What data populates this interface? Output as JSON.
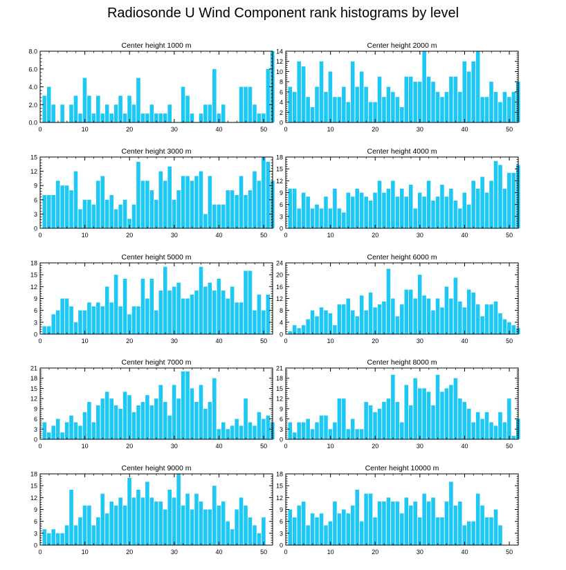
{
  "title": "Radiosonde U Wind Component rank histograms by level",
  "style": {
    "bar_color": "#1ec8f5",
    "axis_color": "#000000",
    "background": "#ffffff"
  },
  "chart_data": [
    {
      "type": "bar",
      "title": "Center height 1000 m",
      "xlim": [
        0,
        52
      ],
      "ylim": [
        0,
        8
      ],
      "yticks": [
        0,
        2,
        4,
        6,
        8
      ],
      "ytick_labels": [
        "0.0",
        "2.0",
        "4.0",
        "6.0",
        "8.0"
      ],
      "xticks": [
        0,
        10,
        20,
        30,
        40,
        50
      ],
      "values": [
        3,
        4,
        2,
        0,
        2,
        0,
        2,
        3,
        1,
        5,
        3,
        1,
        3,
        1,
        2,
        1,
        2,
        3,
        1,
        3,
        2,
        5,
        1,
        1,
        2,
        1,
        1,
        1,
        2,
        0,
        0,
        4,
        3,
        1,
        0,
        1,
        2,
        2,
        6,
        1,
        2,
        0,
        0,
        0,
        4,
        4,
        4,
        2,
        1,
        1,
        6,
        8
      ]
    },
    {
      "type": "bar",
      "title": "Center height 2000 m",
      "xlim": [
        0,
        52
      ],
      "ylim": [
        0,
        14
      ],
      "yticks": [
        0,
        2,
        4,
        6,
        8,
        10,
        12,
        14
      ],
      "xticks": [
        0,
        10,
        20,
        30,
        40,
        50
      ],
      "values": [
        7,
        6,
        12,
        11,
        5,
        3,
        7,
        12,
        6,
        10,
        5,
        5,
        7,
        4,
        12,
        7,
        10,
        7,
        4,
        4,
        9,
        5,
        7,
        6,
        5,
        3,
        9,
        9,
        8,
        8,
        14,
        9,
        8,
        6,
        5,
        6,
        9,
        9,
        6,
        12,
        10,
        12,
        14,
        5,
        5,
        8,
        6,
        4,
        6,
        5,
        6,
        8
      ]
    },
    {
      "type": "bar",
      "title": "Center height 3000 m",
      "xlim": [
        0,
        52
      ],
      "ylim": [
        0,
        15
      ],
      "yticks": [
        0,
        3,
        6,
        9,
        12,
        15
      ],
      "xticks": [
        0,
        10,
        20,
        30,
        40,
        50
      ],
      "values": [
        7,
        7,
        7,
        10,
        9,
        9,
        8,
        12,
        4,
        6,
        6,
        5,
        10,
        11,
        6,
        7,
        4,
        5,
        6,
        2,
        5,
        14,
        10,
        10,
        8,
        6,
        12,
        10,
        13,
        6,
        8,
        11,
        11,
        10,
        11,
        12,
        3,
        11,
        5,
        5,
        5,
        8,
        8,
        7,
        11,
        7,
        8,
        12,
        10,
        15,
        14,
        10
      ]
    },
    {
      "type": "bar",
      "title": "Center height 4000 m",
      "xlim": [
        0,
        52
      ],
      "ylim": [
        0,
        18
      ],
      "yticks": [
        0,
        3,
        6,
        9,
        12,
        15,
        18
      ],
      "xticks": [
        0,
        10,
        20,
        30,
        40,
        50
      ],
      "values": [
        10,
        10,
        5,
        9,
        8,
        5,
        6,
        5,
        8,
        5,
        10,
        5,
        4,
        9,
        8,
        10,
        9,
        8,
        7,
        9,
        12,
        9,
        10,
        12,
        8,
        10,
        8,
        11,
        5,
        9,
        8,
        12,
        7,
        8,
        11,
        8,
        10,
        7,
        5,
        9,
        6,
        12,
        10,
        13,
        9,
        12,
        17,
        16,
        10,
        14,
        14,
        16
      ]
    },
    {
      "type": "bar",
      "title": "Center height 5000 m",
      "xlim": [
        0,
        52
      ],
      "ylim": [
        0,
        18
      ],
      "yticks": [
        0,
        3,
        6,
        9,
        12,
        15,
        18
      ],
      "xticks": [
        0,
        10,
        20,
        30,
        40,
        50
      ],
      "values": [
        2,
        2,
        5,
        6,
        9,
        9,
        7,
        3,
        6,
        6,
        8,
        7,
        8,
        7,
        12,
        8,
        15,
        7,
        14,
        5,
        7,
        7,
        14,
        9,
        14,
        6,
        11,
        17,
        11,
        12,
        13,
        9,
        9,
        10,
        11,
        17,
        12,
        13,
        11,
        14,
        11,
        9,
        12,
        8,
        8,
        16,
        16,
        6,
        10,
        6,
        10,
        0
      ]
    },
    {
      "type": "bar",
      "title": "Center height 6000 m",
      "xlim": [
        0,
        52
      ],
      "ylim": [
        0,
        24
      ],
      "yticks": [
        0,
        4,
        8,
        12,
        16,
        20,
        24
      ],
      "xticks": [
        0,
        10,
        20,
        30,
        40,
        50
      ],
      "values": [
        1,
        3,
        2,
        3,
        5,
        8,
        6,
        9,
        8,
        7,
        3,
        10,
        10,
        12,
        8,
        6,
        13,
        8,
        14,
        9,
        10,
        11,
        22,
        12,
        6,
        10,
        15,
        15,
        12,
        20,
        13,
        12,
        8,
        12,
        9,
        16,
        12,
        19,
        11,
        9,
        15,
        14,
        10,
        6,
        10,
        10,
        11,
        7,
        5,
        4,
        3,
        2
      ]
    },
    {
      "type": "bar",
      "title": "Center height 7000 m",
      "xlim": [
        0,
        52
      ],
      "ylim": [
        0,
        21
      ],
      "yticks": [
        0,
        3,
        6,
        9,
        12,
        15,
        18,
        21
      ],
      "xticks": [
        0,
        10,
        20,
        30,
        40,
        50
      ],
      "values": [
        5,
        2,
        4,
        6,
        2,
        5,
        7,
        5,
        4,
        8,
        11,
        5,
        10,
        12,
        14,
        12,
        10,
        9,
        14,
        13,
        8,
        10,
        11,
        13,
        10,
        12,
        16,
        11,
        7,
        16,
        12,
        20,
        20,
        15,
        11,
        16,
        9,
        11,
        18,
        3,
        5,
        3,
        4,
        6,
        4,
        12,
        5,
        4,
        8,
        6,
        7,
        5
      ]
    },
    {
      "type": "bar",
      "title": "Center height 8000 m",
      "xlim": [
        0,
        52
      ],
      "ylim": [
        0,
        21
      ],
      "yticks": [
        0,
        3,
        6,
        9,
        12,
        15,
        18,
        21
      ],
      "xticks": [
        0,
        10,
        20,
        30,
        40,
        50
      ],
      "values": [
        5,
        2,
        5,
        5,
        6,
        3,
        5,
        7,
        7,
        3,
        5,
        12,
        12,
        3,
        6,
        3,
        3,
        11,
        10,
        8,
        9,
        11,
        12,
        19,
        11,
        5,
        16,
        10,
        18,
        15,
        15,
        14,
        10,
        19,
        14,
        15,
        16,
        18,
        12,
        11,
        9,
        5,
        8,
        6,
        8,
        5,
        4,
        8,
        5,
        12,
        1,
        6
      ]
    },
    {
      "type": "bar",
      "title": "Center height 9000 m",
      "xlim": [
        0,
        52
      ],
      "ylim": [
        0,
        18
      ],
      "yticks": [
        0,
        3,
        6,
        9,
        12,
        15,
        18
      ],
      "xticks": [
        0,
        10,
        20,
        30,
        40,
        50
      ],
      "values": [
        4,
        3,
        4,
        3,
        3,
        5,
        14,
        5,
        7,
        10,
        10,
        5,
        7,
        13,
        8,
        11,
        10,
        12,
        10,
        17,
        12,
        14,
        12,
        16,
        12,
        11,
        11,
        9,
        14,
        12,
        18,
        10,
        13,
        9,
        13,
        11,
        9,
        9,
        15,
        10,
        11,
        6,
        4,
        9,
        12,
        10,
        7,
        5,
        3,
        7,
        0,
        0
      ]
    },
    {
      "type": "bar",
      "title": "Center height 10000 m",
      "xlim": [
        0,
        52
      ],
      "ylim": [
        0,
        18
      ],
      "yticks": [
        0,
        3,
        6,
        9,
        12,
        15,
        18
      ],
      "xticks": [
        0,
        10,
        20,
        30,
        40,
        50
      ],
      "values": [
        9,
        7,
        10,
        11,
        5,
        8,
        7,
        8,
        5,
        6,
        11,
        8,
        9,
        8,
        10,
        14,
        6,
        13,
        13,
        7,
        11,
        11,
        12,
        11,
        11,
        8,
        12,
        10,
        11,
        7,
        13,
        11,
        12,
        7,
        7,
        11,
        16,
        10,
        11,
        5,
        6,
        6,
        13,
        10,
        7,
        7,
        9,
        5,
        0,
        0,
        0,
        0
      ]
    }
  ]
}
